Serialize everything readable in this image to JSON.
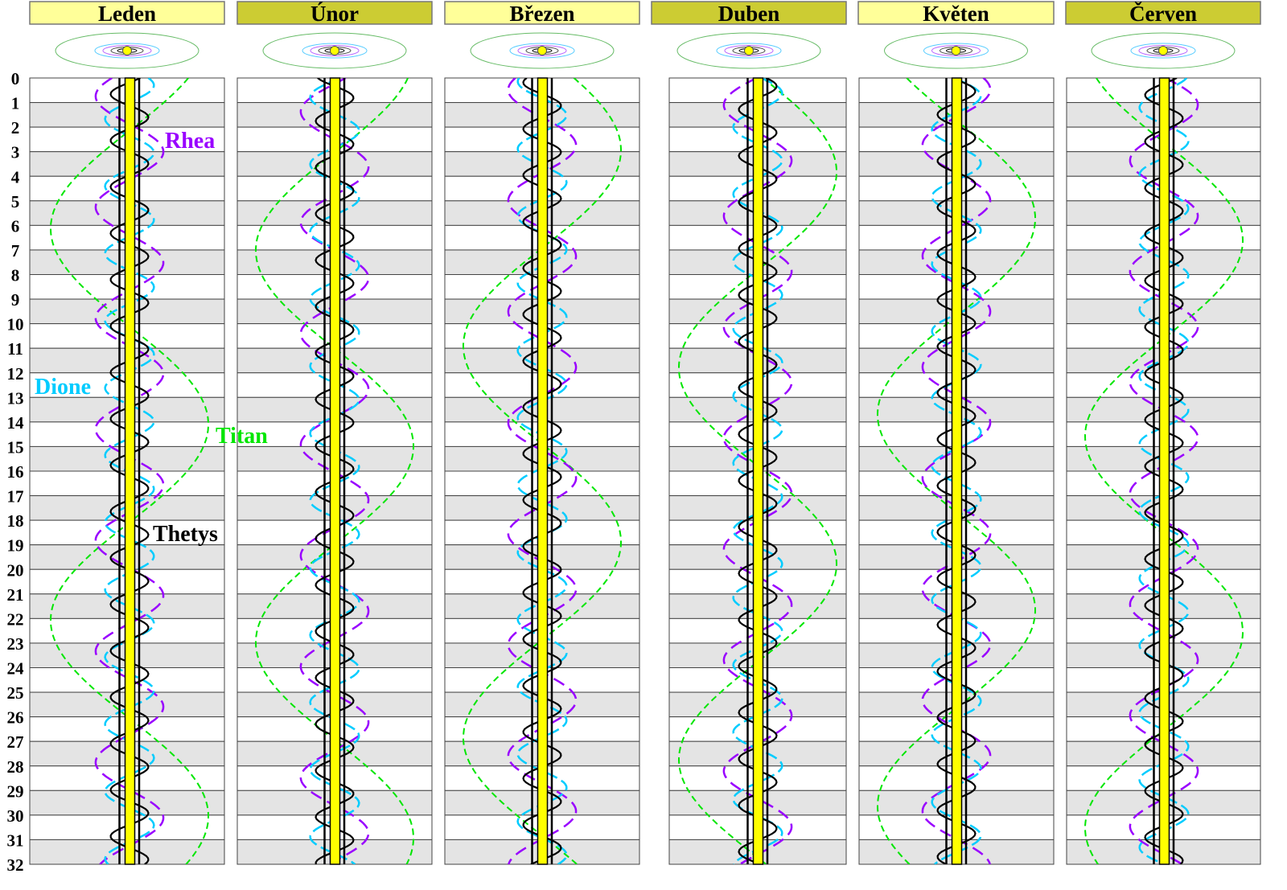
{
  "chart_data": {
    "type": "line",
    "title": "",
    "ylabel": "",
    "xlabel": "",
    "y_ticks": [
      "0",
      "1",
      "2",
      "3",
      "4",
      "5",
      "6",
      "7",
      "8",
      "9",
      "10",
      "11",
      "12",
      "13",
      "14",
      "15",
      "16",
      "17",
      "18",
      "19",
      "20",
      "21",
      "22",
      "23",
      "24",
      "25",
      "26",
      "27",
      "28",
      "29",
      "30",
      "31",
      "32"
    ],
    "ylim": [
      0,
      32
    ],
    "months": [
      {
        "name": "Leden",
        "start_offset_days": 0,
        "header_color": "#ffff99"
      },
      {
        "name": "Únor",
        "start_offset_days": 31,
        "header_color": "#cccc33"
      },
      {
        "name": "Březen",
        "start_offset_days": 59,
        "header_color": "#ffff99"
      },
      {
        "name": "Duben",
        "start_offset_days": 90,
        "header_color": "#cccc33"
      },
      {
        "name": "Květen",
        "start_offset_days": 120,
        "header_color": "#ffff99"
      },
      {
        "name": "Červen",
        "start_offset_days": 151,
        "header_color": "#cccc33"
      }
    ],
    "series": [
      {
        "name": "Titan",
        "color": "#00e600",
        "period_days": 15.945,
        "relative_elongation": 1.0,
        "max_east_day_in_january": 14.1
      },
      {
        "name": "Rhea",
        "color": "#9900ff",
        "period_days": 4.518,
        "relative_elongation": 0.43,
        "max_east_day_in_january": 3.0
      },
      {
        "name": "Dione",
        "color": "#00ccff",
        "period_days": 2.737,
        "relative_elongation": 0.31,
        "max_east_day_in_january": 0.3
      },
      {
        "name": "Thetys",
        "color": "#000000",
        "period_days": 1.888,
        "relative_elongation": 0.24,
        "max_east_day_in_january": 1.6
      }
    ],
    "planet_color": "#ffff00",
    "grid": true,
    "row_shading": "#e4e4e4"
  }
}
